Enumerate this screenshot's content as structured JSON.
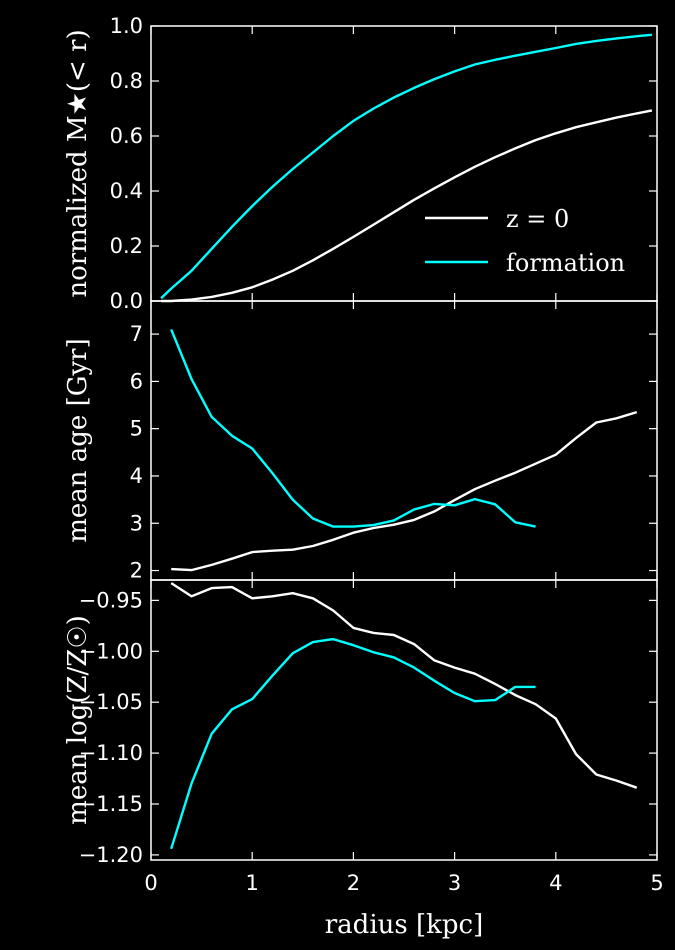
{
  "chart_data": {
    "type": "line",
    "xlabel": "radius [kpc]",
    "xlim": [
      0,
      5
    ],
    "xticks": [
      0,
      1,
      2,
      3,
      4,
      5
    ],
    "colors": {
      "z0": "#ffffff",
      "formation": "#00ffff",
      "background": "#000000"
    },
    "legend": {
      "placement": "lower-right",
      "panel": 0,
      "entries": [
        "z = 0",
        "formation"
      ]
    },
    "panels": [
      {
        "ylabel": "normalized M★(< r)",
        "ylim": [
          0,
          1.0
        ],
        "yticks": [
          0.0,
          0.2,
          0.4,
          0.6,
          0.8,
          1.0
        ],
        "ytick_labels": [
          "0.0",
          "0.2",
          "0.4",
          "0.6",
          "0.8",
          "1.0"
        ],
        "series": [
          {
            "name": "z = 0",
            "x": [
              0.1,
              0.2,
              0.4,
              0.6,
              0.8,
              1.0,
              1.2,
              1.4,
              1.6,
              1.8,
              2.0,
              2.2,
              2.4,
              2.6,
              2.8,
              3.0,
              3.2,
              3.4,
              3.6,
              3.8,
              4.0,
              4.2,
              4.4,
              4.6,
              4.8,
              4.95
            ],
            "y": [
              0.0,
              0.0,
              0.005,
              0.015,
              0.03,
              0.05,
              0.078,
              0.11,
              0.148,
              0.19,
              0.233,
              0.278,
              0.323,
              0.368,
              0.41,
              0.45,
              0.488,
              0.523,
              0.555,
              0.585,
              0.61,
              0.632,
              0.65,
              0.667,
              0.682,
              0.693
            ]
          },
          {
            "name": "formation",
            "x": [
              0.1,
              0.2,
              0.4,
              0.6,
              0.8,
              1.0,
              1.2,
              1.4,
              1.6,
              1.8,
              2.0,
              2.2,
              2.4,
              2.6,
              2.8,
              3.0,
              3.2,
              3.4,
              3.6,
              3.8,
              4.0,
              4.2,
              4.4,
              4.6,
              4.8,
              4.95
            ],
            "y": [
              0.01,
              0.045,
              0.11,
              0.19,
              0.27,
              0.345,
              0.415,
              0.48,
              0.54,
              0.6,
              0.655,
              0.7,
              0.74,
              0.775,
              0.807,
              0.835,
              0.86,
              0.877,
              0.892,
              0.906,
              0.92,
              0.935,
              0.946,
              0.955,
              0.963,
              0.968
            ]
          }
        ]
      },
      {
        "ylabel": "mean age [Gyr]",
        "ylim": [
          1.8,
          7.7
        ],
        "yticks": [
          2,
          3,
          4,
          5,
          6,
          7
        ],
        "ytick_labels": [
          "2",
          "3",
          "4",
          "5",
          "6",
          "7"
        ],
        "series": [
          {
            "name": "z = 0",
            "x": [
              0.2,
              0.4,
              0.6,
              0.8,
              1.0,
              1.2,
              1.4,
              1.6,
              1.8,
              2.0,
              2.2,
              2.4,
              2.6,
              2.8,
              3.0,
              3.2,
              3.4,
              3.6,
              3.8,
              4.0,
              4.2,
              4.4,
              4.6,
              4.8
            ],
            "y": [
              2.03,
              2.01,
              2.12,
              2.25,
              2.39,
              2.42,
              2.44,
              2.52,
              2.65,
              2.8,
              2.9,
              2.97,
              3.07,
              3.25,
              3.49,
              3.72,
              3.9,
              4.07,
              4.26,
              4.45,
              4.8,
              5.13,
              5.22,
              5.35
            ]
          },
          {
            "name": "formation",
            "x": [
              0.2,
              0.4,
              0.6,
              0.8,
              1.0,
              1.2,
              1.4,
              1.6,
              1.8,
              2.0,
              2.2,
              2.4,
              2.6,
              2.8,
              3.0,
              3.2,
              3.4,
              3.6,
              3.8
            ],
            "y": [
              7.1,
              6.05,
              5.25,
              4.85,
              4.58,
              4.06,
              3.5,
              3.1,
              2.93,
              2.93,
              2.96,
              3.06,
              3.29,
              3.41,
              3.38,
              3.51,
              3.4,
              3.02,
              2.93
            ]
          }
        ]
      },
      {
        "ylabel": "mean log(Z/Z☉)",
        "ylim": [
          -1.205,
          -0.93
        ],
        "yticks": [
          -0.95,
          -1.0,
          -1.05,
          -1.1,
          -1.15,
          -1.2
        ],
        "ytick_labels": [
          "−0.95",
          "−1.00",
          "−1.05",
          "−1.10",
          "−1.15",
          "−1.20"
        ],
        "series": [
          {
            "name": "z = 0",
            "x": [
              0.2,
              0.4,
              0.6,
              0.8,
              1.0,
              1.2,
              1.4,
              1.6,
              1.8,
              2.0,
              2.2,
              2.4,
              2.6,
              2.8,
              3.0,
              3.2,
              3.4,
              3.6,
              3.8,
              4.0,
              4.2,
              4.4,
              4.6,
              4.8
            ],
            "y": [
              -0.933,
              -0.946,
              -0.938,
              -0.937,
              -0.948,
              -0.946,
              -0.943,
              -0.948,
              -0.96,
              -0.977,
              -0.982,
              -0.984,
              -0.993,
              -1.009,
              -1.016,
              -1.022,
              -1.032,
              -1.043,
              -1.052,
              -1.066,
              -1.101,
              -1.121,
              -1.127,
              -1.134
            ]
          },
          {
            "name": "formation",
            "x": [
              0.2,
              0.4,
              0.6,
              0.8,
              1.0,
              1.2,
              1.4,
              1.6,
              1.8,
              2.0,
              2.2,
              2.4,
              2.6,
              2.8,
              3.0,
              3.2,
              3.4,
              3.6,
              3.8
            ],
            "y": [
              -1.194,
              -1.13,
              -1.081,
              -1.057,
              -1.047,
              -1.024,
              -1.002,
              -0.991,
              -0.988,
              -0.994,
              -1.001,
              -1.006,
              -1.016,
              -1.029,
              -1.041,
              -1.049,
              -1.048,
              -1.035,
              -1.035
            ]
          }
        ]
      }
    ]
  }
}
